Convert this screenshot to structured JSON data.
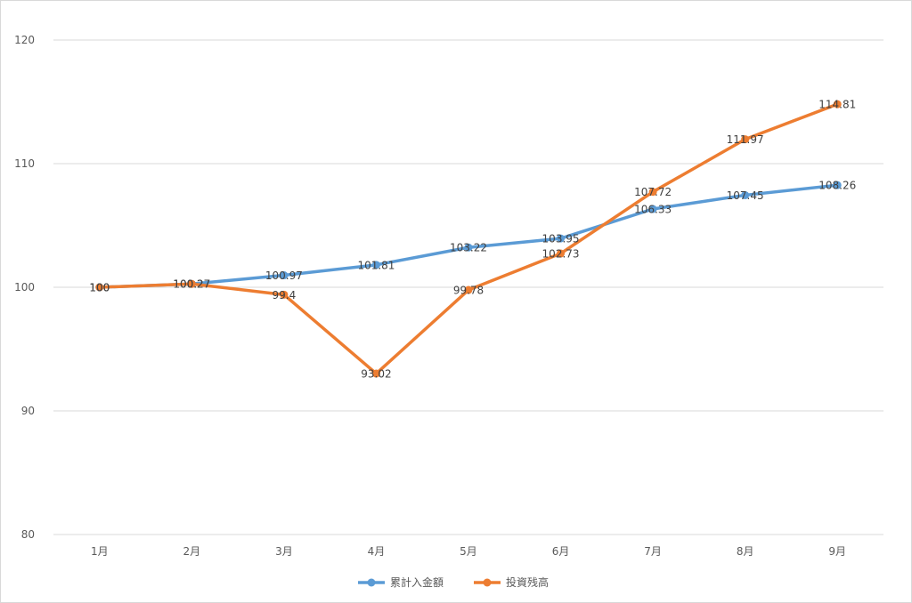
{
  "chart_data": {
    "type": "line",
    "categories": [
      "1月",
      "2月",
      "3月",
      "4月",
      "5月",
      "6月",
      "7月",
      "8月",
      "9月"
    ],
    "series": [
      {
        "name": "累計入金額",
        "color": "#5b9bd5",
        "values": [
          100,
          100.27,
          100.97,
          101.81,
          103.22,
          103.95,
          106.33,
          107.45,
          108.26
        ]
      },
      {
        "name": "投資残高",
        "color": "#ed7d31",
        "values": [
          100,
          100.27,
          99.4,
          93.02,
          99.78,
          102.73,
          107.72,
          111.97,
          114.81
        ]
      }
    ],
    "ylim": [
      80,
      120
    ],
    "yticks": [
      80,
      90,
      100,
      110,
      120
    ],
    "grid": true,
    "legend": "bottom",
    "data_labels": {
      "累計入金額": [
        "100",
        "100.27",
        "100.97",
        "101.81",
        "103.22",
        "103.95",
        "106.33",
        "107.45",
        "108.26"
      ],
      "投資残高": [
        "100",
        "100.27",
        "99.4",
        "93.02",
        "99.78",
        "102.73",
        "107.72",
        "111.97",
        "114.81"
      ]
    }
  }
}
